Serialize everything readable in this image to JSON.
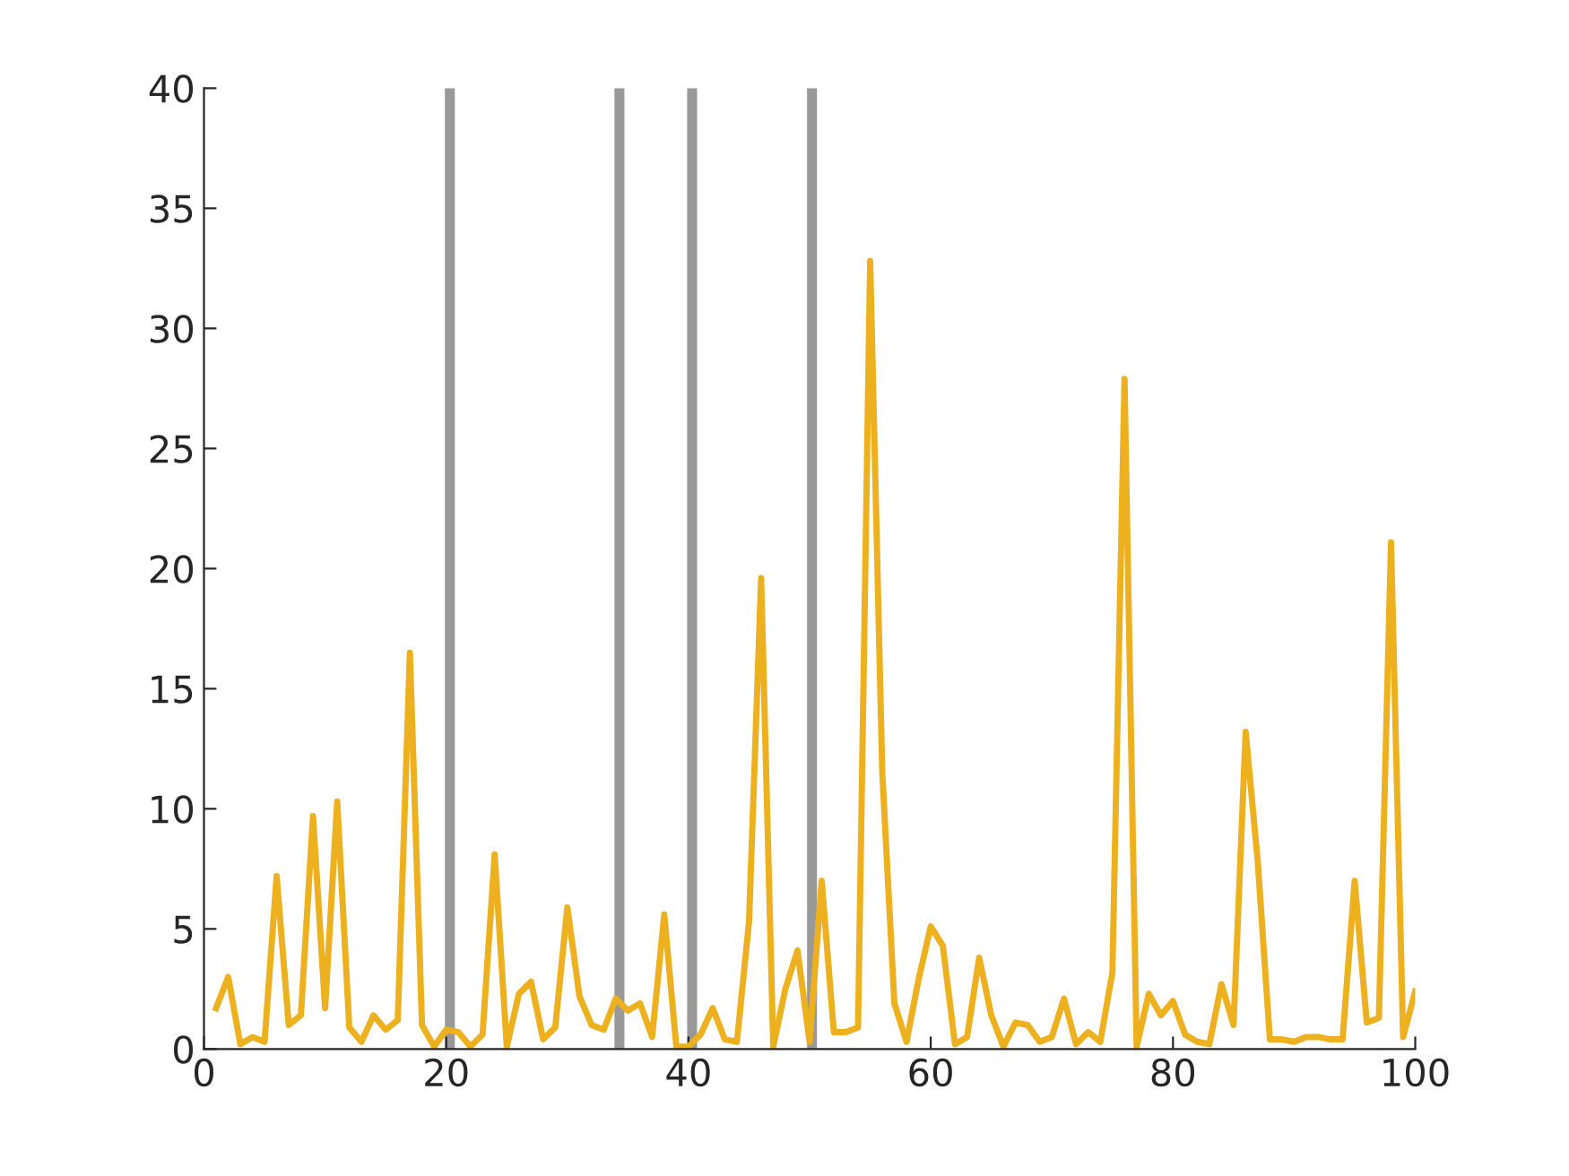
{
  "chart_data": {
    "type": "line",
    "x": [
      1,
      2,
      3,
      4,
      5,
      6,
      7,
      8,
      9,
      10,
      11,
      12,
      13,
      14,
      15,
      16,
      17,
      18,
      19,
      20,
      21,
      22,
      23,
      24,
      25,
      26,
      27,
      28,
      29,
      30,
      31,
      32,
      33,
      34,
      35,
      36,
      37,
      38,
      39,
      40,
      41,
      42,
      43,
      44,
      45,
      46,
      47,
      48,
      49,
      50,
      51,
      52,
      53,
      54,
      55,
      56,
      57,
      58,
      59,
      60,
      61,
      62,
      63,
      64,
      65,
      66,
      67,
      68,
      69,
      70,
      71,
      72,
      73,
      74,
      75,
      76,
      77,
      78,
      79,
      80,
      81,
      82,
      83,
      84,
      85,
      86,
      87,
      88,
      89,
      90,
      91,
      92,
      93,
      94,
      95,
      96,
      97,
      98,
      99,
      100
    ],
    "series": [
      {
        "color": "#edb120",
        "values": [
          1.7,
          3.0,
          0.2,
          0.5,
          0.3,
          7.2,
          1.0,
          1.4,
          9.7,
          1.7,
          10.3,
          0.9,
          0.3,
          1.4,
          0.8,
          1.2,
          16.5,
          1.0,
          0.1,
          0.8,
          0.7,
          0.1,
          0.6,
          8.1,
          0.1,
          2.3,
          2.8,
          0.4,
          0.9,
          5.9,
          2.2,
          1.0,
          0.8,
          2.1,
          1.6,
          1.9,
          0.5,
          5.6,
          0.1,
          0.1,
          0.6,
          1.7,
          0.4,
          0.3,
          5.3,
          19.6,
          0.1,
          2.5,
          4.1,
          0.3,
          7.0,
          0.7,
          0.7,
          0.9,
          32.8,
          11.5,
          1.9,
          0.3,
          2.9,
          5.1,
          4.3,
          0.2,
          0.5,
          3.8,
          1.4,
          0.1,
          1.1,
          1.0,
          0.3,
          0.5,
          2.1,
          0.2,
          0.7,
          0.3,
          3.2,
          27.9,
          0.1,
          2.3,
          1.4,
          2.0,
          0.6,
          0.3,
          0.2,
          2.7,
          1.0,
          13.2,
          7.8,
          0.4,
          0.4,
          0.3,
          0.5,
          0.5,
          0.4,
          0.4,
          7.0,
          1.1,
          1.3,
          21.1,
          0.5,
          2.4
        ]
      }
    ],
    "xlim": [
      0,
      100
    ],
    "xticks": [
      0,
      20,
      40,
      60,
      80,
      100
    ],
    "ylim": [
      0,
      40
    ],
    "yticks": [
      0,
      5,
      10,
      15,
      20,
      25,
      30,
      35,
      40
    ],
    "ref_lines": [
      {
        "axis": "x",
        "value": 20.3,
        "color": "#999999"
      },
      {
        "axis": "x",
        "value": 34.3,
        "color": "#999999"
      },
      {
        "axis": "x",
        "value": 40.3,
        "color": "#999999"
      },
      {
        "axis": "x",
        "value": 50.2,
        "color": "#999999"
      }
    ],
    "grid": false
  }
}
